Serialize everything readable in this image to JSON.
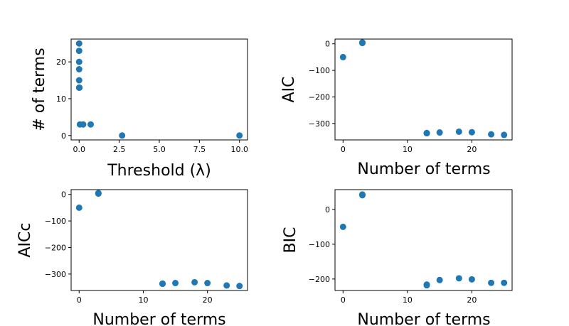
{
  "chart_data": [
    {
      "id": "threshold",
      "type": "scatter",
      "xlabel": "Threshold (λ)",
      "ylabel": "# of terms",
      "xlim": [
        -0.5,
        10.5
      ],
      "ylim": [
        -1.2,
        26.2
      ],
      "xticks": [
        0.0,
        2.5,
        5.0,
        7.5,
        10.0
      ],
      "xtick_labels": [
        "0.0",
        "2.5",
        "5.0",
        "7.5",
        "10.0"
      ],
      "yticks": [
        0,
        10,
        20
      ],
      "ytick_labels": [
        "0",
        "10",
        "20"
      ],
      "color": "#1f77b4",
      "points": [
        {
          "x": 0.0,
          "y": 25
        },
        {
          "x": 0.0,
          "y": 23
        },
        {
          "x": 0.0,
          "y": 20
        },
        {
          "x": 0.0,
          "y": 18
        },
        {
          "x": 0.0,
          "y": 15
        },
        {
          "x": 0.0,
          "y": 13
        },
        {
          "x": 0.02,
          "y": 13
        },
        {
          "x": 0.05,
          "y": 3
        },
        {
          "x": 0.25,
          "y": 3
        },
        {
          "x": 0.72,
          "y": 3
        },
        {
          "x": 2.68,
          "y": 0
        },
        {
          "x": 10.0,
          "y": 0
        }
      ]
    },
    {
      "id": "aic",
      "type": "scatter",
      "xlabel": "Number of terms",
      "ylabel": "AIC",
      "xlim": [
        -1.25,
        26.25
      ],
      "ylim": [
        -362,
        18
      ],
      "xticks": [
        0,
        10,
        20
      ],
      "xtick_labels": [
        "0",
        "10",
        "20"
      ],
      "yticks": [
        0,
        -100,
        -200,
        -300
      ],
      "ytick_labels": [
        "0",
        "−100",
        "−200",
        "−300"
      ],
      "color": "#1f77b4",
      "points": [
        {
          "x": 0,
          "y": -50
        },
        {
          "x": 3,
          "y": 5
        },
        {
          "x": 3,
          "y": 3
        },
        {
          "x": 13,
          "y": -336
        },
        {
          "x": 13,
          "y": -337
        },
        {
          "x": 15,
          "y": -334
        },
        {
          "x": 18,
          "y": -331
        },
        {
          "x": 20,
          "y": -333
        },
        {
          "x": 23,
          "y": -341
        },
        {
          "x": 25,
          "y": -343
        }
      ]
    },
    {
      "id": "aicc",
      "type": "scatter",
      "xlabel": "Number of terms",
      "ylabel": "AICc",
      "xlim": [
        -1.25,
        26.25
      ],
      "ylim": [
        -362,
        18
      ],
      "xticks": [
        0,
        10,
        20
      ],
      "xtick_labels": [
        "0",
        "10",
        "20"
      ],
      "yticks": [
        0,
        -100,
        -200,
        -300
      ],
      "ytick_labels": [
        "0",
        "−100",
        "−200",
        "−300"
      ],
      "color": "#1f77b4",
      "points": [
        {
          "x": 0,
          "y": -50
        },
        {
          "x": 3,
          "y": 5
        },
        {
          "x": 3,
          "y": 3
        },
        {
          "x": 13,
          "y": -336
        },
        {
          "x": 13,
          "y": -337
        },
        {
          "x": 15,
          "y": -334
        },
        {
          "x": 18,
          "y": -331
        },
        {
          "x": 20,
          "y": -334
        },
        {
          "x": 23,
          "y": -343
        },
        {
          "x": 25,
          "y": -345
        }
      ]
    },
    {
      "id": "bic",
      "type": "scatter",
      "xlabel": "Number of terms",
      "ylabel": "BIC",
      "xlim": [
        -1.25,
        26.25
      ],
      "ylim": [
        -233,
        57
      ],
      "xticks": [
        0,
        10,
        20
      ],
      "xtick_labels": [
        "0",
        "10",
        "20"
      ],
      "yticks": [
        0,
        -100,
        -200
      ],
      "ytick_labels": [
        "0",
        "−100",
        "−200"
      ],
      "color": "#1f77b4",
      "points": [
        {
          "x": 0,
          "y": -50
        },
        {
          "x": 3,
          "y": 43
        },
        {
          "x": 3,
          "y": 41
        },
        {
          "x": 13,
          "y": -216
        },
        {
          "x": 13,
          "y": -218
        },
        {
          "x": 15,
          "y": -203
        },
        {
          "x": 18,
          "y": -198
        },
        {
          "x": 20,
          "y": -201
        },
        {
          "x": 23,
          "y": -211
        },
        {
          "x": 25,
          "y": -211
        }
      ]
    }
  ]
}
